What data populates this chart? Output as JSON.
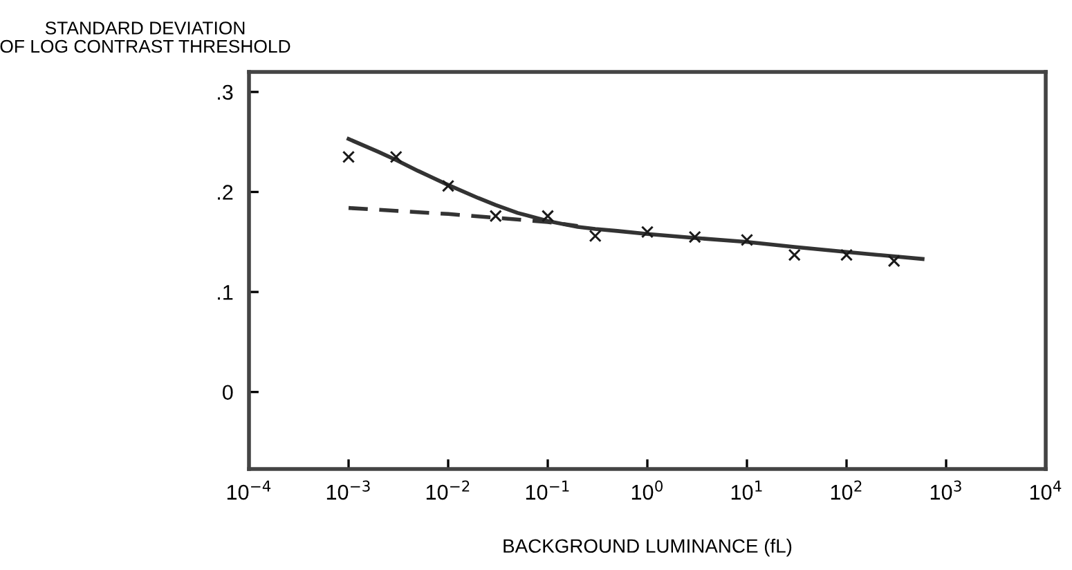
{
  "chart_data": {
    "type": "scatter",
    "ylabel": "STANDARD DEVIATION\nOF LOG CONTRAST THRESHOLD",
    "xlabel": "BACKGROUND LUMINANCE (fL)",
    "log": "x",
    "xlim": [
      0.0001,
      10000
    ],
    "xticks": [
      {
        "value": 0.0001,
        "label": "10$^{−4}$"
      },
      {
        "value": 0.001,
        "label": "10$^{−3}$"
      },
      {
        "value": 0.01,
        "label": "10$^{−2}$"
      },
      {
        "value": 0.1,
        "label": "10$^{−1}$"
      },
      {
        "value": 1,
        "label": "10$^{0}$"
      },
      {
        "value": 10,
        "label": "10$^{1}$"
      },
      {
        "value": 100,
        "label": "10$^{2}$"
      },
      {
        "value": 1000,
        "label": "10$^{3}$"
      },
      {
        "value": 10000,
        "label": "10$^{4}$"
      }
    ],
    "ylim": [
      -0.077,
      0.32
    ],
    "yticks": [
      {
        "value": 0,
        "label": "0"
      },
      {
        "value": 0.1,
        "label": ".1"
      },
      {
        "value": 0.2,
        "label": ".2"
      },
      {
        "value": 0.3,
        "label": ".3"
      }
    ],
    "grid": false,
    "legend": false,
    "series": [
      {
        "marker": "cross",
        "color": "#1a1a1a",
        "x": [
          0.001,
          0.003,
          0.01,
          0.03,
          0.1,
          0.3,
          1,
          3,
          10,
          30,
          100,
          300
        ],
        "values": [
          0.235,
          0.235,
          0.206,
          0.176,
          0.176,
          0.156,
          0.16,
          0.155,
          0.152,
          0.137,
          0.137,
          0.131
        ]
      },
      {
        "type": "line",
        "line_style": "solid",
        "marker": "none",
        "color": "#333333",
        "x": [
          0.001,
          0.002,
          0.003,
          0.005,
          0.01,
          0.02,
          0.03,
          0.05,
          0.1,
          0.2,
          0.3,
          0.5,
          1,
          3,
          10,
          30,
          100,
          580
        ],
        "values": [
          0.253,
          0.24,
          0.232,
          0.221,
          0.207,
          0.194,
          0.187,
          0.179,
          0.171,
          0.165,
          0.163,
          0.161,
          0.158,
          0.154,
          0.15,
          0.145,
          0.14,
          0.133
        ]
      },
      {
        "type": "line",
        "line_style": "dashed",
        "marker": "none",
        "color": "#333333",
        "x": [
          0.001,
          0.01,
          0.1,
          0.2
        ],
        "values": [
          0.184,
          0.178,
          0.17,
          0.166
        ]
      }
    ]
  }
}
